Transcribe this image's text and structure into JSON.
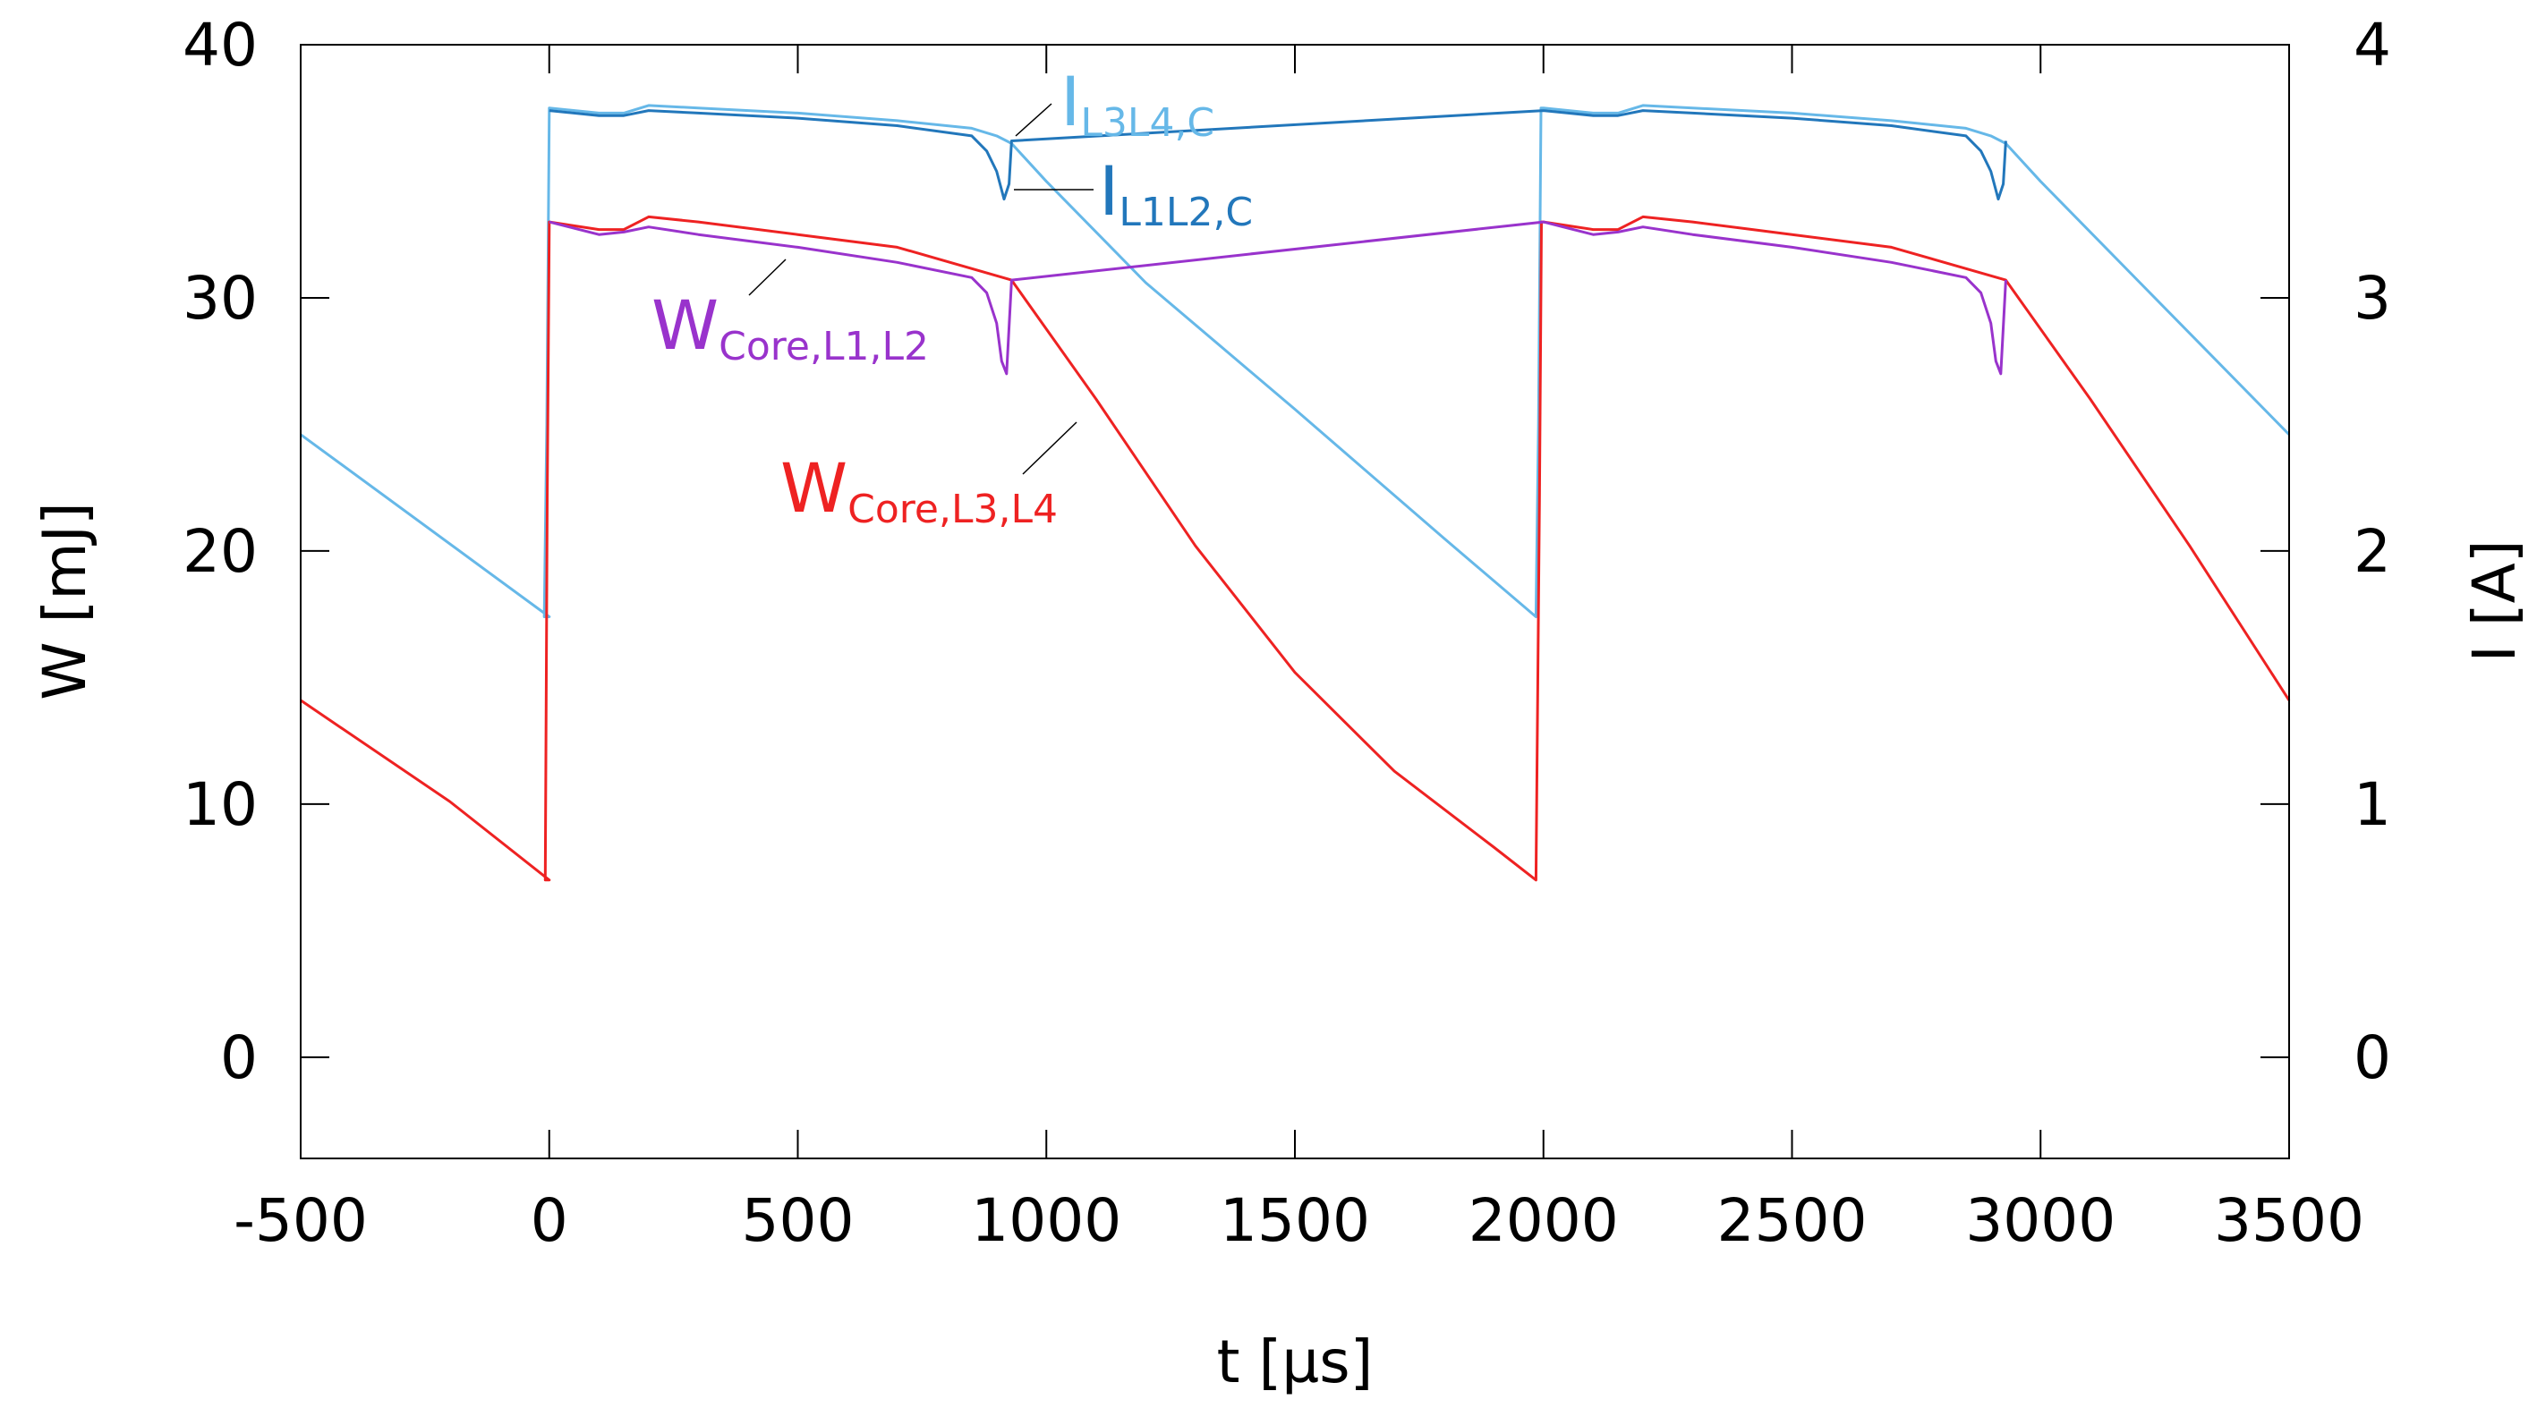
{
  "chart_data": {
    "type": "line",
    "title": "",
    "xlabel": "t [µs]",
    "ylabel": "W [mJ]",
    "y2label": "I [A]",
    "xlim": [
      -500,
      3500
    ],
    "ylim": [
      -4,
      40
    ],
    "y2lim": [
      -0.4,
      4
    ],
    "grid": false,
    "x_ticks": [
      -500,
      0,
      500,
      1000,
      1500,
      2000,
      2500,
      3000,
      3500
    ],
    "y_ticks": [
      0,
      10,
      20,
      30,
      40
    ],
    "y2_ticks": [
      0,
      1,
      2,
      3,
      4
    ],
    "colors": {
      "W_Core_L1_L2": "#9933cc",
      "W_Core_L3_L4": "#ee2222",
      "I_L3L4_C": "#66b8e8",
      "I_L1L2_C": "#2277bb",
      "leader": "#000000"
    },
    "series": [
      {
        "key": "I_L3L4_C",
        "name": "I",
        "sub": "L3L4,C",
        "axis": "right",
        "x": [
          -500,
          0,
          -10,
          -5,
          0,
          100,
          150,
          200,
          300,
          500,
          700,
          850,
          900,
          920,
          930,
          1000,
          1200,
          1500,
          1800,
          1985,
          1990,
          1995,
          2000,
          2100,
          2150,
          2200,
          2300,
          2500,
          2700,
          2850,
          2900,
          2920,
          2930,
          3000,
          3200,
          3500
        ],
        "values": [
          2.46,
          1.74,
          1.74,
          2.5,
          3.75,
          3.73,
          3.73,
          3.76,
          3.75,
          3.73,
          3.7,
          3.67,
          3.64,
          3.62,
          3.61,
          3.46,
          3.06,
          2.56,
          2.05,
          1.74,
          2.5,
          3.75,
          3.75,
          3.73,
          3.73,
          3.76,
          3.75,
          3.73,
          3.7,
          3.67,
          3.64,
          3.62,
          3.61,
          3.46,
          3.06,
          2.46
        ]
      },
      {
        "key": "I_L1L2_C",
        "name": "I",
        "sub": "L1L2,C",
        "axis": "right",
        "x": [
          0,
          100,
          150,
          200,
          300,
          500,
          700,
          850,
          880,
          900,
          915,
          925,
          930,
          2000,
          2100,
          2150,
          2200,
          2300,
          2500,
          2700,
          2850,
          2880,
          2900,
          2915,
          2925,
          2930
        ],
        "values": [
          3.74,
          3.72,
          3.72,
          3.74,
          3.73,
          3.71,
          3.68,
          3.64,
          3.58,
          3.5,
          3.39,
          3.45,
          3.62,
          3.74,
          3.72,
          3.72,
          3.74,
          3.73,
          3.71,
          3.68,
          3.64,
          3.58,
          3.5,
          3.39,
          3.45,
          3.62
        ]
      },
      {
        "key": "W_Core_L3_L4",
        "name": "W",
        "sub": "Core,L3,L4",
        "axis": "left",
        "x": [
          -500,
          -200,
          0,
          -8,
          -4,
          0,
          100,
          150,
          200,
          300,
          500,
          700,
          930,
          1100,
          1300,
          1500,
          1700,
          1900,
          1985,
          1992,
          1996,
          2000,
          2100,
          2150,
          2200,
          2300,
          2500,
          2700,
          2930,
          3100,
          3300,
          3500
        ],
        "values": [
          14.1,
          10.1,
          7.0,
          7.0,
          22.0,
          33.0,
          32.7,
          32.7,
          33.2,
          33.0,
          32.5,
          32.0,
          30.7,
          26.0,
          20.2,
          15.2,
          11.3,
          8.3,
          7.0,
          22.0,
          33.0,
          33.0,
          32.7,
          32.7,
          33.2,
          33.0,
          32.5,
          32.0,
          30.7,
          26.0,
          20.2,
          14.1
        ]
      },
      {
        "key": "W_Core_L1_L2",
        "name": "W",
        "sub": "Core,L1,L2",
        "axis": "left",
        "x": [
          0,
          100,
          150,
          200,
          300,
          500,
          700,
          850,
          880,
          900,
          910,
          920,
          930,
          2000,
          2100,
          2150,
          2200,
          2300,
          2500,
          2700,
          2850,
          2880,
          2900,
          2910,
          2920,
          2930
        ],
        "values": [
          33.0,
          32.5,
          32.6,
          32.8,
          32.5,
          32.0,
          31.4,
          30.8,
          30.2,
          29.0,
          27.5,
          27.0,
          30.7,
          33.0,
          32.5,
          32.6,
          32.8,
          32.5,
          32.0,
          31.4,
          30.8,
          30.2,
          29.0,
          27.5,
          27.0,
          30.7
        ]
      }
    ],
    "annotations": [
      {
        "series": "I_L3L4_C",
        "name": "I",
        "sub": "L3L4,C"
      },
      {
        "series": "I_L1L2_C",
        "name": "I",
        "sub": "L1L2,C"
      },
      {
        "series": "W_Core_L1_L2",
        "name": "W",
        "sub": "Core,L1,L2"
      },
      {
        "series": "W_Core_L3_L4",
        "name": "W",
        "sub": "Core,L3,L4"
      }
    ]
  }
}
